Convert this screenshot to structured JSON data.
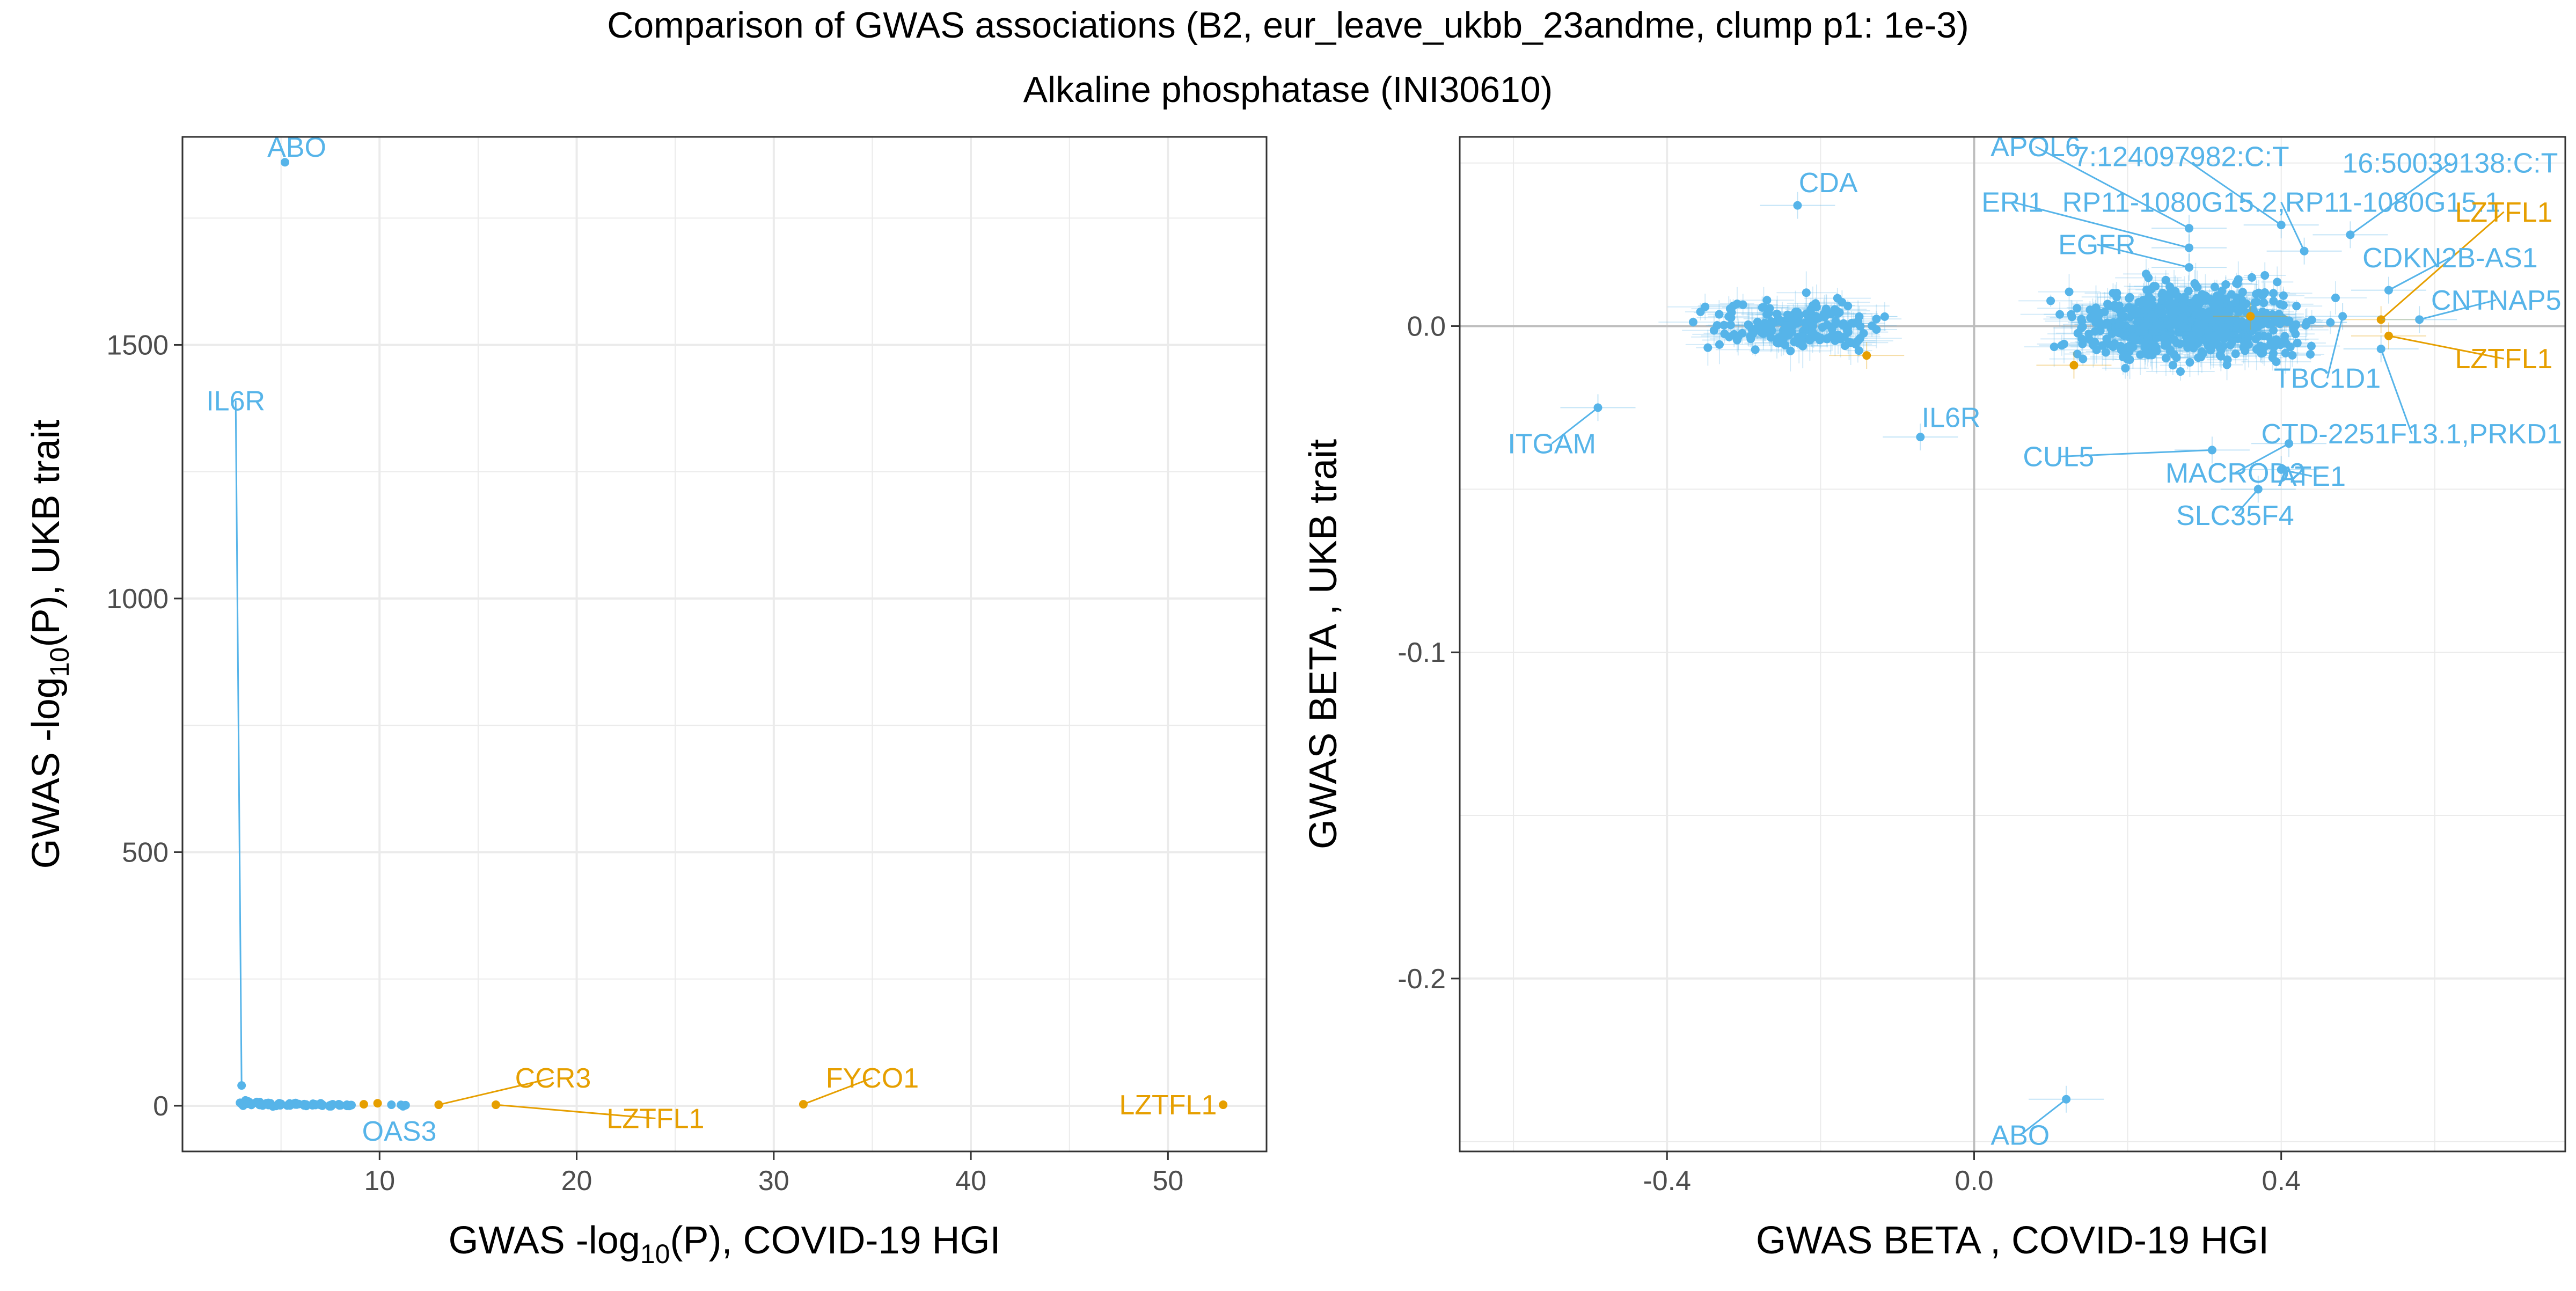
{
  "title": "Comparison of GWAS associations (B2, eur_leave_ukbb_23andme, clump p1: 1e-3)",
  "subtitle": "Alkaline phosphatase (INI30610)",
  "colors": {
    "blue": "#56B4E9",
    "orange": "#E69F00",
    "grid": "#EBEBEB",
    "zero": "#BEBEBE"
  },
  "chart_data": [
    {
      "type": "scatter",
      "xlabel": {
        "main": "GWAS -log",
        "sub": "10",
        "rest": "(P), COVID-19 HGI"
      },
      "ylabel": {
        "main": "GWAS -log",
        "sub": "10",
        "rest": "(P), UKB trait"
      },
      "xlim": [
        0,
        55
      ],
      "ylim": [
        -90,
        1910
      ],
      "xticks": [
        10,
        20,
        30,
        40,
        50
      ],
      "yticks": [
        0,
        500,
        1000,
        1500
      ],
      "grid": true,
      "cluster": [
        [
          3,
          5
        ],
        [
          3.1,
          2
        ],
        [
          3.3,
          8
        ],
        [
          3.5,
          3
        ],
        [
          3.8,
          6
        ],
        [
          4,
          2
        ],
        [
          4.3,
          4
        ],
        [
          4.6,
          1
        ],
        [
          5,
          3
        ],
        [
          5.4,
          2
        ],
        [
          5.8,
          4
        ],
        [
          6.2,
          1
        ],
        [
          6.6,
          2
        ],
        [
          7,
          3
        ],
        [
          7.5,
          1
        ],
        [
          8,
          2
        ],
        [
          8.5,
          1
        ],
        [
          11.2,
          1
        ]
      ],
      "labeled": [
        {
          "label": "ABO",
          "x": 5.2,
          "y": 1860,
          "lx": 5.8,
          "ly": 1890,
          "color": "blue"
        },
        {
          "label": "IL6R",
          "x": 3.0,
          "y": 40,
          "lx": 2.7,
          "ly": 1390,
          "color": "blue",
          "line": true
        },
        {
          "label": "OAS3",
          "x": 10.6,
          "y": 2,
          "lx": 11,
          "ly": -50,
          "color": "blue"
        },
        {
          "label": "CCR3",
          "x": 13.0,
          "y": 2,
          "lx": 18.8,
          "ly": 55,
          "color": "orange",
          "line": true
        },
        {
          "label": "LZTFL1",
          "x": 15.9,
          "y": 2,
          "lx": 24,
          "ly": -25,
          "color": "orange",
          "line": true
        },
        {
          "label": "FYCO1",
          "x": 31.5,
          "y": 3,
          "lx": 35,
          "ly": 55,
          "color": "orange",
          "line": true
        },
        {
          "label": "LZTFL1",
          "x": 52.8,
          "y": 2,
          "lx": 50,
          "ly": 2,
          "color": "orange"
        },
        {
          "label": "",
          "x": 9.2,
          "y": 3,
          "color": "orange"
        },
        {
          "label": "",
          "x": 9.9,
          "y": 5,
          "color": "orange"
        }
      ]
    },
    {
      "type": "scatter",
      "xlabel": "GWAS BETA , COVID-19 HGI",
      "ylabel": "GWAS BETA , UKB trait",
      "xlim": [
        -0.67,
        0.77
      ],
      "ylim": [
        -0.253,
        0.058
      ],
      "xticks": [
        -0.4,
        0.0,
        0.4
      ],
      "xtick_labels": [
        "-0.4",
        "0.0",
        "0.4"
      ],
      "yticks": [
        0.0,
        -0.1,
        -0.2
      ],
      "ytick_labels": [
        "0.0",
        "-0.1",
        "-0.2"
      ],
      "grid": true,
      "clusters": [
        {
          "x": [
            -0.42,
            -0.06
          ],
          "y": [
            -0.012,
            0.012
          ],
          "n": 170
        },
        {
          "x": [
            0.06,
            0.5
          ],
          "y": [
            -0.018,
            0.02
          ],
          "n": 650
        }
      ],
      "labeled": [
        {
          "label": "CDA",
          "x": -0.23,
          "y": 0.037,
          "lx": -0.19,
          "ly": 0.044,
          "color": "blue"
        },
        {
          "label": "ITGAM",
          "x": -0.49,
          "y": -0.025,
          "lx": -0.55,
          "ly": -0.036,
          "color": "blue",
          "line": true
        },
        {
          "label": "IL6R",
          "x": -0.07,
          "y": -0.034,
          "lx": -0.03,
          "ly": -0.028,
          "color": "blue"
        },
        {
          "label": "ABO",
          "x": 0.12,
          "y": -0.237,
          "lx": 0.06,
          "ly": -0.248,
          "color": "blue",
          "line": true
        },
        {
          "label": "APOL6",
          "x": 0.28,
          "y": 0.03,
          "lx": 0.08,
          "ly": 0.055,
          "color": "blue",
          "line": true
        },
        {
          "label": "7:124097982:C:T",
          "x": 0.4,
          "y": 0.031,
          "lx": 0.27,
          "ly": 0.052,
          "color": "blue",
          "line": true
        },
        {
          "label": "16:50039138:C:T",
          "x": 0.49,
          "y": 0.028,
          "lx": 0.62,
          "ly": 0.05,
          "color": "blue",
          "line": true
        },
        {
          "label": "ERI1",
          "x": 0.28,
          "y": 0.024,
          "lx": 0.05,
          "ly": 0.038,
          "color": "blue",
          "line": true
        },
        {
          "label": "RP11-1080G15.2,RP11-1080G15.1",
          "x": 0.43,
          "y": 0.023,
          "lx": 0.4,
          "ly": 0.038,
          "color": "blue",
          "line": true
        },
        {
          "label": "LZTFL1",
          "x": 0.53,
          "y": 0.002,
          "lx": 0.69,
          "ly": 0.035,
          "color": "orange",
          "line": true
        },
        {
          "label": "EGFR",
          "x": 0.28,
          "y": 0.018,
          "lx": 0.16,
          "ly": 0.025,
          "color": "blue",
          "line": true
        },
        {
          "label": "CDKN2B-AS1",
          "x": 0.54,
          "y": 0.011,
          "lx": 0.62,
          "ly": 0.021,
          "color": "blue",
          "line": true
        },
        {
          "label": "CNTNAP5",
          "x": 0.58,
          "y": 0.002,
          "lx": 0.68,
          "ly": 0.008,
          "color": "blue",
          "line": true
        },
        {
          "label": "TBC1D1",
          "x": 0.48,
          "y": 0.003,
          "lx": 0.46,
          "ly": -0.016,
          "color": "blue",
          "line": true
        },
        {
          "label": "LZTFL1",
          "x": 0.54,
          "y": -0.003,
          "lx": 0.69,
          "ly": -0.01,
          "color": "orange",
          "line": true
        },
        {
          "label": "CTD-2251F13.1,PRKD1",
          "x": 0.53,
          "y": -0.007,
          "lx": 0.57,
          "ly": -0.033,
          "color": "blue",
          "line": true
        },
        {
          "label": "CUL5",
          "x": 0.31,
          "y": -0.038,
          "lx": 0.11,
          "ly": -0.04,
          "color": "blue",
          "line": true
        },
        {
          "label": "MACROD2",
          "x": 0.41,
          "y": -0.036,
          "lx": 0.34,
          "ly": -0.045,
          "color": "blue",
          "line": true
        },
        {
          "label": "ATE1",
          "x": 0.4,
          "y": -0.044,
          "lx": 0.44,
          "ly": -0.046,
          "color": "blue",
          "line": true
        },
        {
          "label": "SLC35F4",
          "x": 0.37,
          "y": -0.05,
          "lx": 0.34,
          "ly": -0.058,
          "color": "blue",
          "line": true
        },
        {
          "label": "",
          "x": -0.14,
          "y": -0.009,
          "color": "orange"
        },
        {
          "label": "",
          "x": 0.13,
          "y": -0.012,
          "color": "orange"
        },
        {
          "label": "",
          "x": 0.36,
          "y": 0.003,
          "color": "orange"
        }
      ]
    }
  ]
}
